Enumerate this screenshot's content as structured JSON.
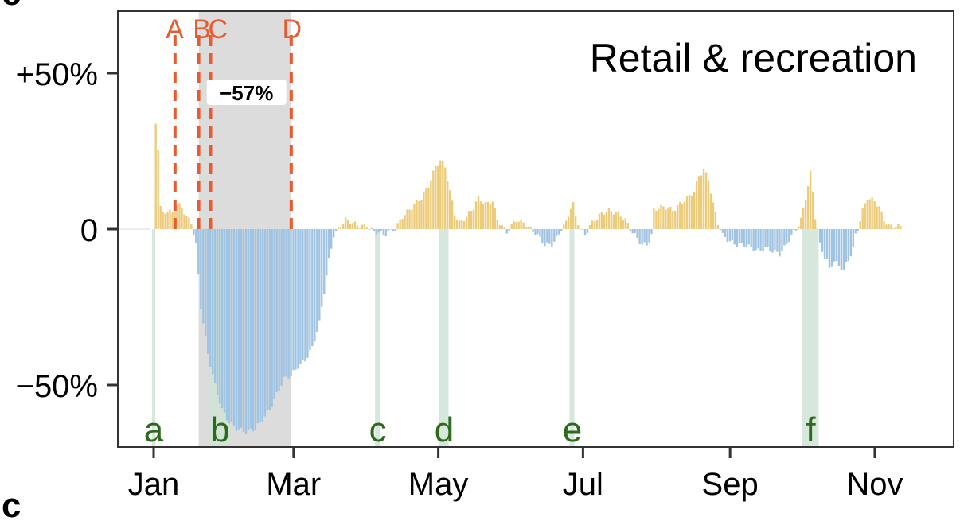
{
  "panel_letters": {
    "top": "c",
    "bottom": "c"
  },
  "chart_data": {
    "type": "bar",
    "title": "Retail & recreation",
    "xlabel": "",
    "ylabel": "",
    "ylim": [
      -70,
      70
    ],
    "x_unit": "day of year",
    "y_ticks": [
      {
        "value": 50,
        "label": "+50%"
      },
      {
        "value": 0,
        "label": "0"
      },
      {
        "value": -50,
        "label": "−50%"
      }
    ],
    "x_ticks": [
      {
        "day": 1,
        "label": "Jan"
      },
      {
        "day": 60,
        "label": "Mar"
      },
      {
        "day": 121,
        "label": "May"
      },
      {
        "day": 182,
        "label": "Jul"
      },
      {
        "day": 244,
        "label": "Sep"
      },
      {
        "day": 305,
        "label": "Nov"
      }
    ],
    "profile_points": [
      [
        2,
        34
      ],
      [
        3,
        26
      ],
      [
        4,
        7
      ],
      [
        5,
        5
      ],
      [
        7,
        6
      ],
      [
        9,
        5
      ],
      [
        11,
        8
      ],
      [
        13,
        7
      ],
      [
        15,
        4
      ],
      [
        17,
        2
      ],
      [
        19,
        -5
      ],
      [
        21,
        -25
      ],
      [
        24,
        -40
      ],
      [
        27,
        -50
      ],
      [
        30,
        -58
      ],
      [
        33,
        -62
      ],
      [
        36,
        -64
      ],
      [
        40,
        -65
      ],
      [
        44,
        -64
      ],
      [
        47,
        -61
      ],
      [
        50,
        -58
      ],
      [
        53,
        -53
      ],
      [
        56,
        -48
      ],
      [
        59,
        -47
      ],
      [
        62,
        -44
      ],
      [
        65,
        -42
      ],
      [
        68,
        -38
      ],
      [
        71,
        -30
      ],
      [
        73,
        -20
      ],
      [
        75,
        -10
      ],
      [
        77,
        -2
      ],
      [
        79,
        0
      ],
      [
        82,
        3
      ],
      [
        85,
        2
      ],
      [
        88,
        1
      ],
      [
        91,
        1
      ],
      [
        94,
        -1
      ],
      [
        96,
        -1
      ],
      [
        98,
        -2
      ],
      [
        100,
        -1
      ],
      [
        103,
        0
      ],
      [
        106,
        4
      ],
      [
        110,
        7
      ],
      [
        114,
        10
      ],
      [
        117,
        14
      ],
      [
        120,
        20
      ],
      [
        122,
        22
      ],
      [
        124,
        20
      ],
      [
        126,
        12
      ],
      [
        128,
        5
      ],
      [
        130,
        2
      ],
      [
        133,
        4
      ],
      [
        136,
        7
      ],
      [
        138,
        10
      ],
      [
        141,
        8
      ],
      [
        144,
        9
      ],
      [
        146,
        3
      ],
      [
        148,
        1
      ],
      [
        150,
        -1
      ],
      [
        152,
        1
      ],
      [
        154,
        3
      ],
      [
        157,
        2
      ],
      [
        160,
        0
      ],
      [
        163,
        -2
      ],
      [
        166,
        -5
      ],
      [
        169,
        -5
      ],
      [
        171,
        -3
      ],
      [
        173,
        0
      ],
      [
        175,
        2
      ],
      [
        177,
        7
      ],
      [
        178,
        8
      ],
      [
        179,
        4
      ],
      [
        181,
        0
      ],
      [
        183,
        -2
      ],
      [
        185,
        1
      ],
      [
        187,
        3
      ],
      [
        190,
        5
      ],
      [
        193,
        6
      ],
      [
        197,
        5
      ],
      [
        200,
        3
      ],
      [
        202,
        0
      ],
      [
        204,
        -2
      ],
      [
        207,
        -5
      ],
      [
        209,
        -5
      ],
      [
        211,
        -2
      ],
      [
        212,
        6
      ],
      [
        214,
        7
      ],
      [
        217,
        7
      ],
      [
        220,
        6
      ],
      [
        223,
        8
      ],
      [
        226,
        10
      ],
      [
        229,
        12
      ],
      [
        231,
        17
      ],
      [
        233,
        19
      ],
      [
        235,
        16
      ],
      [
        237,
        8
      ],
      [
        239,
        2
      ],
      [
        241,
        -2
      ],
      [
        244,
        -4
      ],
      [
        247,
        -5
      ],
      [
        250,
        -5
      ],
      [
        253,
        -6
      ],
      [
        256,
        -7
      ],
      [
        259,
        -6
      ],
      [
        262,
        -7
      ],
      [
        265,
        -8
      ],
      [
        267,
        -6
      ],
      [
        270,
        -2
      ],
      [
        272,
        0
      ],
      [
        274,
        3
      ],
      [
        276,
        10
      ],
      [
        278,
        18
      ],
      [
        279,
        12
      ],
      [
        280,
        4
      ],
      [
        281,
        0
      ],
      [
        282,
        -5
      ],
      [
        284,
        -9
      ],
      [
        285,
        -10
      ],
      [
        286,
        -13
      ],
      [
        288,
        -10
      ],
      [
        290,
        -12
      ],
      [
        292,
        -13
      ],
      [
        294,
        -10
      ],
      [
        296,
        -6
      ],
      [
        297,
        -2
      ],
      [
        298,
        0
      ],
      [
        300,
        6
      ],
      [
        302,
        10
      ],
      [
        305,
        9
      ],
      [
        307,
        7
      ],
      [
        309,
        3
      ],
      [
        311,
        1
      ],
      [
        314,
        1
      ],
      [
        316,
        1
      ]
    ],
    "positive_color": "#eccb7a",
    "negative_color": "#9fc3e2",
    "events": [
      {
        "label": "A",
        "day": 10
      },
      {
        "label": "B",
        "day": 20
      },
      {
        "label": "C",
        "day": 25
      },
      {
        "label": "D",
        "day": 59
      }
    ],
    "event_color": "#e95a2f",
    "shaded_period": {
      "start": 20,
      "end": 59,
      "label": "−57%"
    },
    "holidays": [
      {
        "label": "a",
        "start": 1,
        "end": 1
      },
      {
        "label": "b",
        "start": 25,
        "end": 33
      },
      {
        "label": "c",
        "start": 95,
        "end": 96
      },
      {
        "label": "d",
        "start": 122,
        "end": 125
      },
      {
        "label": "e",
        "start": 177,
        "end": 178
      },
      {
        "label": "f",
        "start": 275,
        "end": 281
      }
    ],
    "holiday_color": "#2e6a1b",
    "grid": false,
    "legend": "none"
  }
}
